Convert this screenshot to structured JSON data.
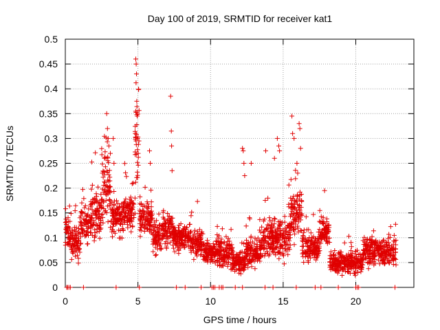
{
  "chart_data": {
    "type": "scatter",
    "title": "Day 100 of 2019, SRMTID for receiver kat1",
    "xlabel": "GPS time / hours",
    "ylabel": "SRMTID / TECUs",
    "xlim": [
      0,
      24
    ],
    "ylim": [
      0,
      0.5
    ],
    "xticks": [
      0,
      5,
      10,
      15,
      20
    ],
    "xtick_labels": [
      "0",
      "5",
      "10",
      "15",
      "20"
    ],
    "yticks": [
      0,
      0.05,
      0.1,
      0.15,
      0.2,
      0.25,
      0.3,
      0.35,
      0.4,
      0.45,
      0.5
    ],
    "ytick_labels": [
      "0",
      "0.05",
      "0.1",
      "0.15",
      "0.2",
      "0.25",
      "0.3",
      "0.35",
      "0.4",
      "0.45",
      "0.5"
    ],
    "grid": true,
    "marker": "+",
    "color": "#e00000",
    "series": [
      {
        "name": "SRMTID",
        "segments": [
          {
            "x_range": [
              0.0,
              0.4
            ],
            "base": 0.115,
            "spread": 0.05
          },
          {
            "x_range": [
              0.4,
              1.0
            ],
            "base": 0.09,
            "spread": 0.05
          },
          {
            "x_range": [
              1.0,
              1.6
            ],
            "base": 0.13,
            "spread": 0.07
          },
          {
            "x_range": [
              1.6,
              2.5
            ],
            "base": 0.15,
            "spread": 0.07
          },
          {
            "x_range": [
              2.5,
              3.1
            ],
            "base": 0.2,
            "spread": 0.1
          },
          {
            "x_range": [
              3.1,
              4.0
            ],
            "base": 0.14,
            "spread": 0.05
          },
          {
            "x_range": [
              4.0,
              4.8
            ],
            "base": 0.15,
            "spread": 0.05
          },
          {
            "x_range": [
              4.8,
              5.1
            ],
            "base": 0.3,
            "spread": 0.15
          },
          {
            "x_range": [
              5.1,
              6.0
            ],
            "base": 0.14,
            "spread": 0.05
          },
          {
            "x_range": [
              6.0,
              6.6
            ],
            "base": 0.1,
            "spread": 0.04
          },
          {
            "x_range": [
              6.6,
              7.4
            ],
            "base": 0.12,
            "spread": 0.05
          },
          {
            "x_range": [
              7.4,
              8.6
            ],
            "base": 0.1,
            "spread": 0.04
          },
          {
            "x_range": [
              8.6,
              9.5
            ],
            "base": 0.09,
            "spread": 0.04
          },
          {
            "x_range": [
              9.5,
              10.4
            ],
            "base": 0.07,
            "spread": 0.03
          },
          {
            "x_range": [
              10.4,
              11.5
            ],
            "base": 0.07,
            "spread": 0.04
          },
          {
            "x_range": [
              11.5,
              12.4
            ],
            "base": 0.05,
            "spread": 0.03
          },
          {
            "x_range": [
              12.4,
              13.5
            ],
            "base": 0.07,
            "spread": 0.04
          },
          {
            "x_range": [
              13.5,
              14.4
            ],
            "base": 0.1,
            "spread": 0.05
          },
          {
            "x_range": [
              14.4,
              15.5
            ],
            "base": 0.1,
            "spread": 0.06
          },
          {
            "x_range": [
              15.5,
              16.3
            ],
            "base": 0.15,
            "spread": 0.08
          },
          {
            "x_range": [
              16.3,
              17.5
            ],
            "base": 0.08,
            "spread": 0.04
          },
          {
            "x_range": [
              17.5,
              18.2
            ],
            "base": 0.11,
            "spread": 0.04
          },
          {
            "x_range": [
              18.2,
              19.5
            ],
            "base": 0.05,
            "spread": 0.03
          },
          {
            "x_range": [
              19.5,
              20.5
            ],
            "base": 0.05,
            "spread": 0.03
          },
          {
            "x_range": [
              20.5,
              21.6
            ],
            "base": 0.075,
            "spread": 0.04
          },
          {
            "x_range": [
              21.6,
              22.8
            ],
            "base": 0.07,
            "spread": 0.04
          }
        ],
        "peaks": [
          {
            "x": 4.85,
            "y": 0.46
          },
          {
            "x": 4.88,
            "y": 0.45
          },
          {
            "x": 4.9,
            "y": 0.43
          },
          {
            "x": 4.92,
            "y": 0.375
          },
          {
            "x": 4.95,
            "y": 0.345
          },
          {
            "x": 4.98,
            "y": 0.3
          },
          {
            "x": 5.02,
            "y": 0.27
          },
          {
            "x": 7.25,
            "y": 0.385
          },
          {
            "x": 7.3,
            "y": 0.315
          },
          {
            "x": 7.32,
            "y": 0.285
          },
          {
            "x": 7.35,
            "y": 0.235
          },
          {
            "x": 2.85,
            "y": 0.35
          },
          {
            "x": 2.9,
            "y": 0.32
          },
          {
            "x": 2.95,
            "y": 0.3
          },
          {
            "x": 3.0,
            "y": 0.285
          },
          {
            "x": 3.1,
            "y": 0.27
          },
          {
            "x": 3.3,
            "y": 0.3
          },
          {
            "x": 3.35,
            "y": 0.25
          },
          {
            "x": 5.8,
            "y": 0.275
          },
          {
            "x": 5.85,
            "y": 0.25
          },
          {
            "x": 12.2,
            "y": 0.28
          },
          {
            "x": 12.25,
            "y": 0.275
          },
          {
            "x": 12.3,
            "y": 0.25
          },
          {
            "x": 12.35,
            "y": 0.225
          },
          {
            "x": 12.8,
            "y": 0.25
          },
          {
            "x": 13.8,
            "y": 0.275
          },
          {
            "x": 14.6,
            "y": 0.3
          },
          {
            "x": 14.7,
            "y": 0.285
          },
          {
            "x": 14.75,
            "y": 0.275
          },
          {
            "x": 14.4,
            "y": 0.26
          },
          {
            "x": 15.6,
            "y": 0.345
          },
          {
            "x": 15.65,
            "y": 0.31
          },
          {
            "x": 15.75,
            "y": 0.3
          },
          {
            "x": 16.1,
            "y": 0.33
          },
          {
            "x": 16.15,
            "y": 0.32
          },
          {
            "x": 16.2,
            "y": 0.28
          },
          {
            "x": 15.95,
            "y": 0.25
          },
          {
            "x": 16.0,
            "y": 0.23
          },
          {
            "x": 17.85,
            "y": 0.195
          },
          {
            "x": 2.55,
            "y": 0.23
          },
          {
            "x": 2.7,
            "y": 0.26
          }
        ],
        "zeros": [
          0.1,
          0.15,
          0.25,
          0.35,
          1.25,
          3.5,
          5.1,
          7.65,
          8.25,
          9.35,
          10.1,
          10.2,
          10.3,
          10.6,
          10.75,
          10.85,
          11.7,
          12.2,
          13.75,
          14.3,
          15.9,
          17.2,
          17.6,
          18.8,
          20.0,
          20.1,
          20.2,
          22.7
        ]
      }
    ]
  }
}
